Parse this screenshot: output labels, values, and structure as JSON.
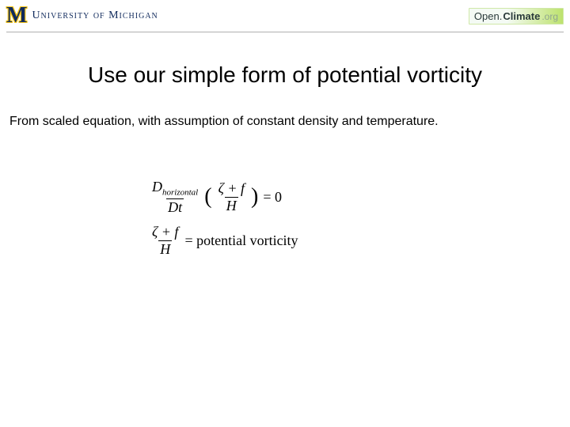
{
  "header": {
    "um_logo_text": "University of Michigan",
    "um_m": "M",
    "openclimate": {
      "open": "Open.",
      "climate": "Climate",
      "org": ".org"
    }
  },
  "title": "Use our simple form of potential vorticity",
  "subtitle": "From scaled equation, with assumption of constant density and temperature.",
  "equations": {
    "eq1": {
      "frac1_num_D": "D",
      "frac1_num_sub": "horizontal",
      "frac1_den": "Dt",
      "lparen": "(",
      "frac2_num": "ζ + f",
      "frac2_den": "H",
      "rparen": ")",
      "rhs": "= 0"
    },
    "eq2": {
      "frac_num": "ζ + f",
      "frac_den": "H",
      "rhs": "= potential vorticity"
    }
  },
  "colors": {
    "um_blue": "#102a5c",
    "um_maize": "#f5c518",
    "divider": "#b0b0b0"
  },
  "fonts": {
    "title_size_pt": 28,
    "subtitle_size_pt": 16,
    "equation_size_pt": 18
  }
}
